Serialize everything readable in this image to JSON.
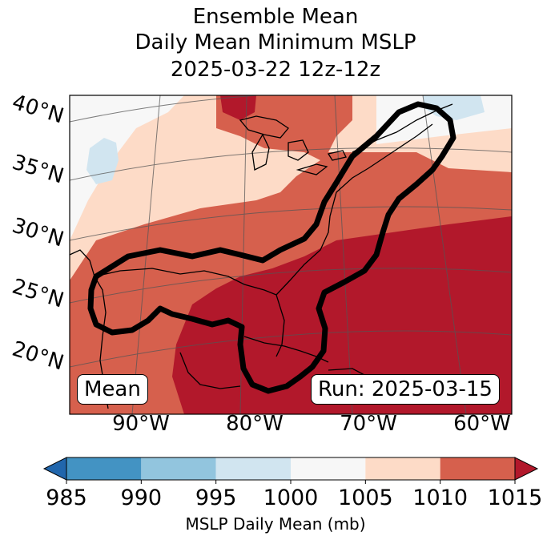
{
  "title": {
    "line1": "Ensemble Mean",
    "line2": "Daily Mean Minimum MSLP",
    "line3": "2025-03-22 12z-12z"
  },
  "map": {
    "lat_labels": [
      "40°N",
      "35°N",
      "30°N",
      "25°N",
      "20°N"
    ],
    "lon_labels": [
      "90°W",
      "80°W",
      "70°W",
      "60°W"
    ],
    "left_box": "Mean",
    "right_box": "Run: 2025-03-15",
    "contour_color": "#000000"
  },
  "colorbar": {
    "ticks": [
      "985",
      "990",
      "995",
      "1000",
      "1005",
      "1010",
      "1015"
    ],
    "colors": [
      "#2166ac",
      "#4393c3",
      "#92c5de",
      "#d1e5f0",
      "#f7f7f7",
      "#fddbc7",
      "#d6604d",
      "#b2182b"
    ],
    "label": "MSLP Daily Mean (mb)"
  }
}
